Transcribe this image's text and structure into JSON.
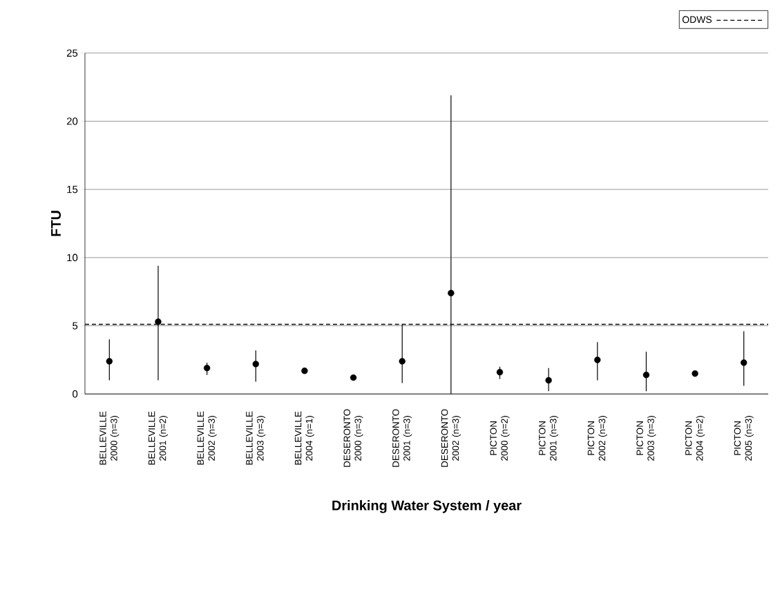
{
  "chart_data": {
    "type": "scatter",
    "xlabel": "Drinking Water System / year",
    "ylabel": "FTU",
    "categories": [
      "BELLEVILLE 2000 (n=3)",
      "BELLEVILLE 2001 (n=2)",
      "BELLEVILLE 2002 (n=3)",
      "BELLEVILLE 2003 (n=3)",
      "BELLEVILLE 2004 (n=1)",
      "DESERONTO 2000 (n=3)",
      "DESERONTO 2001 (n=3)",
      "DESERONTO 2002 (n=3)",
      "PICTON 2000 (n=2)",
      "PICTON 2001 (n=3)",
      "PICTON 2002 (n=3)",
      "PICTON 2003 (n=3)",
      "PICTON 2004 (n=2)",
      "PICTON 2005 (n=3)"
    ],
    "values": [
      2.4,
      5.3,
      1.9,
      2.2,
      1.7,
      1.2,
      2.4,
      7.4,
      1.6,
      1.0,
      2.5,
      1.4,
      1.5,
      2.3
    ],
    "errors": [
      [
        1.0,
        4.0
      ],
      [
        1.0,
        9.4
      ],
      [
        1.4,
        2.3
      ],
      [
        0.9,
        3.2
      ],
      null,
      null,
      [
        0.8,
        5.1
      ],
      [
        0,
        21.9
      ],
      [
        1.1,
        2.0
      ],
      [
        0.2,
        1.9
      ],
      [
        1.0,
        3.8
      ],
      [
        0.2,
        3.1
      ],
      null,
      [
        0.6,
        4.6
      ]
    ],
    "color": "#000000",
    "marker": "circle",
    "ylim": [
      0,
      25
    ],
    "yticks": [
      0,
      5,
      10,
      15,
      20,
      25
    ],
    "grid": "y",
    "ref_lines": [
      {
        "axis": "y",
        "value": 5.1,
        "label": "ODWS",
        "color": "#000000",
        "line_style": "dashed"
      }
    ],
    "legend": "top right"
  }
}
